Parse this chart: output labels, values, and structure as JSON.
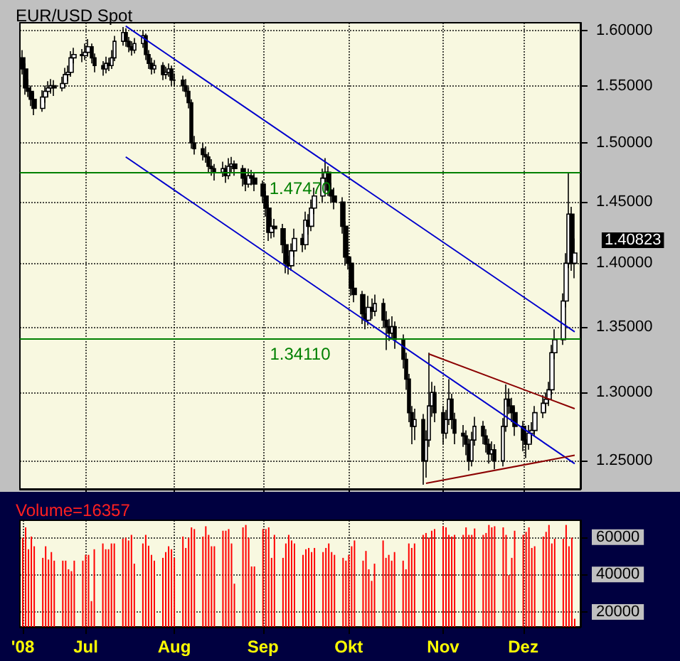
{
  "chart_data": [
    {
      "type": "candlestick",
      "title": "EUR/USD Spot",
      "color": "#000000",
      "log": "y",
      "tick_labels": "y",
      "grid": true,
      "xlim": [
        "2008-06-08",
        "2008-12-21"
      ],
      "ylim": [
        1.23,
        1.607
      ],
      "xticks": [
        {
          "value": "2008-07-01",
          "label": null
        },
        {
          "value": "2008-08-01",
          "label": null
        },
        {
          "value": "2008-09-01",
          "label": null
        },
        {
          "value": "2008-10-01",
          "label": null
        },
        {
          "value": "2008-11-03",
          "label": null
        },
        {
          "value": "2008-12-01",
          "label": null
        }
      ],
      "yticks": [
        {
          "value": 1.25,
          "label": "1.25000"
        },
        {
          "value": 1.3,
          "label": "1.30000"
        },
        {
          "value": 1.35,
          "label": "1.35000"
        },
        {
          "value": 1.4,
          "label": "1.40000"
        },
        {
          "value": 1.45,
          "label": "1.45000"
        },
        {
          "value": 1.5,
          "label": "1.50000"
        },
        {
          "value": 1.55,
          "label": "1.55000"
        },
        {
          "value": 1.6,
          "label": "1.60000"
        }
      ],
      "x": [
        "2008-06-09",
        "2008-06-10",
        "2008-06-11",
        "2008-06-12",
        "2008-06-13",
        "2008-06-16",
        "2008-06-17",
        "2008-06-18",
        "2008-06-19",
        "2008-06-20",
        "2008-06-23",
        "2008-06-24",
        "2008-06-25",
        "2008-06-26",
        "2008-06-27",
        "2008-06-30",
        "2008-07-01",
        "2008-07-02",
        "2008-07-03",
        "2008-07-04",
        "2008-07-07",
        "2008-07-08",
        "2008-07-09",
        "2008-07-10",
        "2008-07-11",
        "2008-07-14",
        "2008-07-15",
        "2008-07-16",
        "2008-07-17",
        "2008-07-18",
        "2008-07-21",
        "2008-07-22",
        "2008-07-23",
        "2008-07-24",
        "2008-07-25",
        "2008-07-28",
        "2008-07-29",
        "2008-07-30",
        "2008-07-31",
        "2008-08-01",
        "2008-08-04",
        "2008-08-05",
        "2008-08-06",
        "2008-08-07",
        "2008-08-08",
        "2008-08-11",
        "2008-08-12",
        "2008-08-13",
        "2008-08-14",
        "2008-08-15",
        "2008-08-18",
        "2008-08-19",
        "2008-08-20",
        "2008-08-21",
        "2008-08-22",
        "2008-08-25",
        "2008-08-26",
        "2008-08-27",
        "2008-08-28",
        "2008-08-29",
        "2008-09-01",
        "2008-09-02",
        "2008-09-03",
        "2008-09-04",
        "2008-09-05",
        "2008-09-08",
        "2008-09-09",
        "2008-09-10",
        "2008-09-11",
        "2008-09-12",
        "2008-09-15",
        "2008-09-16",
        "2008-09-17",
        "2008-09-18",
        "2008-09-19",
        "2008-09-22",
        "2008-09-23",
        "2008-09-24",
        "2008-09-25",
        "2008-09-26",
        "2008-09-29",
        "2008-09-30",
        "2008-10-01",
        "2008-10-02",
        "2008-10-03",
        "2008-10-06",
        "2008-10-07",
        "2008-10-08",
        "2008-10-09",
        "2008-10-10",
        "2008-10-13",
        "2008-10-14",
        "2008-10-15",
        "2008-10-16",
        "2008-10-17",
        "2008-10-20",
        "2008-10-21",
        "2008-10-22",
        "2008-10-23",
        "2008-10-24",
        "2008-10-27",
        "2008-10-28",
        "2008-10-29",
        "2008-10-30",
        "2008-10-31",
        "2008-11-03",
        "2008-11-04",
        "2008-11-05",
        "2008-11-06",
        "2008-11-07",
        "2008-11-10",
        "2008-11-11",
        "2008-11-12",
        "2008-11-13",
        "2008-11-14",
        "2008-11-17",
        "2008-11-18",
        "2008-11-19",
        "2008-11-20",
        "2008-11-21",
        "2008-11-24",
        "2008-11-25",
        "2008-11-26",
        "2008-11-27",
        "2008-11-28",
        "2008-12-01",
        "2008-12-02",
        "2008-12-03",
        "2008-12-04",
        "2008-12-05",
        "2008-12-08",
        "2008-12-09",
        "2008-12-10",
        "2008-12-11",
        "2008-12-12",
        "2008-12-15",
        "2008-12-16",
        "2008-12-17",
        "2008-12-18",
        "2008-12-19"
      ],
      "ohlc": [
        [
          1.575,
          1.582,
          1.56,
          1.565
        ],
        [
          1.565,
          1.57,
          1.542,
          1.548
        ],
        [
          1.548,
          1.556,
          1.54,
          1.545
        ],
        [
          1.545,
          1.55,
          1.532,
          1.538
        ],
        [
          1.538,
          1.544,
          1.524,
          1.53
        ],
        [
          1.53,
          1.546,
          1.527,
          1.54
        ],
        [
          1.54,
          1.55,
          1.535,
          1.545
        ],
        [
          1.545,
          1.554,
          1.54,
          1.548
        ],
        [
          1.548,
          1.556,
          1.543,
          1.55
        ],
        [
          1.55,
          1.555,
          1.541,
          1.548
        ],
        [
          1.548,
          1.558,
          1.545,
          1.552
        ],
        [
          1.552,
          1.566,
          1.549,
          1.56
        ],
        [
          1.56,
          1.568,
          1.554,
          1.562
        ],
        [
          1.562,
          1.581,
          1.558,
          1.575
        ],
        [
          1.575,
          1.584,
          1.57,
          1.578
        ],
        [
          1.578,
          1.583,
          1.571,
          1.577
        ],
        [
          1.577,
          1.588,
          1.573,
          1.58
        ],
        [
          1.58,
          1.592,
          1.576,
          1.585
        ],
        [
          1.585,
          1.588,
          1.57,
          1.575
        ],
        [
          1.575,
          1.579,
          1.562,
          1.568
        ],
        [
          1.568,
          1.572,
          1.559,
          1.565
        ],
        [
          1.565,
          1.576,
          1.561,
          1.57
        ],
        [
          1.57,
          1.575,
          1.563,
          1.568
        ],
        [
          1.568,
          1.582,
          1.565,
          1.575
        ],
        [
          1.575,
          1.595,
          1.572,
          1.59
        ],
        [
          1.59,
          1.603,
          1.586,
          1.598
        ],
        [
          1.598,
          1.602,
          1.585,
          1.59
        ],
        [
          1.59,
          1.594,
          1.58,
          1.585
        ],
        [
          1.585,
          1.59,
          1.577,
          1.582
        ],
        [
          1.582,
          1.593,
          1.579,
          1.588
        ],
        [
          1.588,
          1.6,
          1.584,
          1.595
        ],
        [
          1.595,
          1.597,
          1.573,
          1.578
        ],
        [
          1.578,
          1.582,
          1.565,
          1.57
        ],
        [
          1.57,
          1.575,
          1.56,
          1.565
        ],
        [
          1.565,
          1.573,
          1.561,
          1.568
        ],
        [
          1.568,
          1.571,
          1.555,
          1.56
        ],
        [
          1.56,
          1.567,
          1.556,
          1.562
        ],
        [
          1.562,
          1.57,
          1.558,
          1.565
        ],
        [
          1.565,
          1.568,
          1.55,
          1.555
        ],
        [
          1.555,
          1.561,
          1.549,
          1.555
        ],
        [
          1.555,
          1.559,
          1.545,
          1.55
        ],
        [
          1.55,
          1.556,
          1.54,
          1.545
        ],
        [
          1.545,
          1.549,
          1.53,
          1.535
        ],
        [
          1.535,
          1.538,
          1.495,
          1.5
        ],
        [
          1.5,
          1.506,
          1.49,
          1.495
        ],
        [
          1.495,
          1.5,
          1.485,
          1.49
        ],
        [
          1.49,
          1.497,
          1.483,
          1.488
        ],
        [
          1.488,
          1.492,
          1.474,
          1.48
        ],
        [
          1.48,
          1.486,
          1.472,
          1.478
        ],
        [
          1.478,
          1.482,
          1.468,
          1.475
        ],
        [
          1.475,
          1.484,
          1.471,
          1.478
        ],
        [
          1.478,
          1.481,
          1.466,
          1.472
        ],
        [
          1.472,
          1.487,
          1.469,
          1.48
        ],
        [
          1.48,
          1.488,
          1.475,
          1.482
        ],
        [
          1.482,
          1.485,
          1.472,
          1.478
        ],
        [
          1.478,
          1.481,
          1.463,
          1.47
        ],
        [
          1.47,
          1.474,
          1.459,
          1.465
        ],
        [
          1.465,
          1.478,
          1.462,
          1.472
        ],
        [
          1.472,
          1.477,
          1.464,
          1.47
        ],
        [
          1.47,
          1.474,
          1.459,
          1.465
        ],
        [
          1.465,
          1.468,
          1.449,
          1.455
        ],
        [
          1.455,
          1.459,
          1.438,
          1.445
        ],
        [
          1.445,
          1.448,
          1.418,
          1.425
        ],
        [
          1.425,
          1.437,
          1.42,
          1.43
        ],
        [
          1.43,
          1.436,
          1.421,
          1.428
        ],
        [
          1.428,
          1.432,
          1.408,
          1.415
        ],
        [
          1.415,
          1.419,
          1.392,
          1.4
        ],
        [
          1.4,
          1.406,
          1.391,
          1.398
        ],
        [
          1.398,
          1.416,
          1.394,
          1.41
        ],
        [
          1.41,
          1.428,
          1.405,
          1.42
        ],
        [
          1.42,
          1.424,
          1.409,
          1.415
        ],
        [
          1.415,
          1.442,
          1.411,
          1.435
        ],
        [
          1.435,
          1.44,
          1.423,
          1.43
        ],
        [
          1.43,
          1.452,
          1.426,
          1.445
        ],
        [
          1.445,
          1.462,
          1.44,
          1.455
        ],
        [
          1.455,
          1.478,
          1.45,
          1.47
        ],
        [
          1.47,
          1.487,
          1.465,
          1.475
        ],
        [
          1.475,
          1.48,
          1.455,
          1.46
        ],
        [
          1.46,
          1.466,
          1.45,
          1.455
        ],
        [
          1.455,
          1.462,
          1.444,
          1.45
        ],
        [
          1.45,
          1.454,
          1.424,
          1.43
        ],
        [
          1.43,
          1.434,
          1.398,
          1.405
        ],
        [
          1.405,
          1.412,
          1.395,
          1.4
        ],
        [
          1.4,
          1.404,
          1.374,
          1.38
        ],
        [
          1.38,
          1.386,
          1.369,
          1.375
        ],
        [
          1.375,
          1.378,
          1.352,
          1.36
        ],
        [
          1.36,
          1.366,
          1.348,
          1.355
        ],
        [
          1.355,
          1.374,
          1.351,
          1.365
        ],
        [
          1.365,
          1.372,
          1.356,
          1.362
        ],
        [
          1.362,
          1.375,
          1.358,
          1.368
        ],
        [
          1.368,
          1.372,
          1.349,
          1.355
        ],
        [
          1.355,
          1.362,
          1.332,
          1.35
        ],
        [
          1.35,
          1.356,
          1.339,
          1.345
        ],
        [
          1.345,
          1.358,
          1.341,
          1.35
        ],
        [
          1.35,
          1.354,
          1.333,
          1.34
        ],
        [
          1.34,
          1.344,
          1.318,
          1.325
        ],
        [
          1.325,
          1.33,
          1.302,
          1.31
        ],
        [
          1.31,
          1.314,
          1.278,
          1.285
        ],
        [
          1.285,
          1.29,
          1.262,
          1.275
        ],
        [
          1.275,
          1.288,
          1.265,
          1.28
        ],
        [
          1.28,
          1.284,
          1.233,
          1.25
        ],
        [
          1.25,
          1.272,
          1.238,
          1.265
        ],
        [
          1.265,
          1.33,
          1.26,
          1.29
        ],
        [
          1.29,
          1.308,
          1.282,
          1.3
        ],
        [
          1.3,
          1.305,
          1.278,
          1.285
        ],
        [
          1.285,
          1.29,
          1.262,
          1.27
        ],
        [
          1.27,
          1.287,
          1.266,
          1.28
        ],
        [
          1.28,
          1.31,
          1.276,
          1.295
        ],
        [
          1.295,
          1.299,
          1.273,
          1.28
        ],
        [
          1.28,
          1.285,
          1.262,
          1.27
        ],
        [
          1.27,
          1.276,
          1.26,
          1.268
        ],
        [
          1.268,
          1.272,
          1.254,
          1.262
        ],
        [
          1.262,
          1.266,
          1.243,
          1.25
        ],
        [
          1.25,
          1.271,
          1.246,
          1.265
        ],
        [
          1.265,
          1.282,
          1.261,
          1.275
        ],
        [
          1.275,
          1.279,
          1.262,
          1.268
        ],
        [
          1.268,
          1.273,
          1.256,
          1.262
        ],
        [
          1.262,
          1.266,
          1.248,
          1.255
        ],
        [
          1.255,
          1.264,
          1.25,
          1.258
        ],
        [
          1.258,
          1.262,
          1.244,
          1.25
        ],
        [
          1.25,
          1.281,
          1.246,
          1.275
        ],
        [
          1.275,
          1.306,
          1.271,
          1.295
        ],
        [
          1.295,
          1.303,
          1.284,
          1.29
        ],
        [
          1.29,
          1.296,
          1.278,
          1.285
        ],
        [
          1.285,
          1.289,
          1.268,
          1.275
        ],
        [
          1.275,
          1.279,
          1.257,
          1.265
        ],
        [
          1.265,
          1.27,
          1.252,
          1.262
        ],
        [
          1.262,
          1.276,
          1.258,
          1.27
        ],
        [
          1.27,
          1.278,
          1.263,
          1.272
        ],
        [
          1.272,
          1.29,
          1.268,
          1.285
        ],
        [
          1.285,
          1.298,
          1.281,
          1.292
        ],
        [
          1.292,
          1.3,
          1.286,
          1.295
        ],
        [
          1.295,
          1.308,
          1.29,
          1.302
        ],
        [
          1.302,
          1.336,
          1.298,
          1.33
        ],
        [
          1.33,
          1.348,
          1.325,
          1.34
        ],
        [
          1.34,
          1.376,
          1.336,
          1.37
        ],
        [
          1.37,
          1.408,
          1.365,
          1.4
        ],
        [
          1.4,
          1.474,
          1.396,
          1.44
        ],
        [
          1.44,
          1.446,
          1.394,
          1.4
        ],
        [
          1.4,
          1.42,
          1.388,
          1.40823
        ]
      ],
      "ref_lines": [
        {
          "axis": "y",
          "value": 1.4747,
          "label": "1.47470",
          "color": "#008000"
        },
        {
          "axis": "y",
          "value": 1.3411,
          "label": "1.34110",
          "color": "#008000"
        }
      ],
      "series": [
        {
          "type": "line",
          "color": "#0000cc",
          "x": [
            "2008-07-15",
            "2008-12-19"
          ],
          "values": [
            1.604,
            1.346
          ]
        },
        {
          "type": "line",
          "color": "#0000cc",
          "x": [
            "2008-07-15",
            "2008-12-19"
          ],
          "values": [
            1.488,
            1.248
          ]
        },
        {
          "type": "line",
          "color": "#8b0000",
          "x": [
            "2008-10-29",
            "2008-12-19"
          ],
          "values": [
            1.329,
            1.288
          ]
        },
        {
          "type": "line",
          "color": "#8b0000",
          "x": [
            "2008-10-28",
            "2008-12-19"
          ],
          "values": [
            1.234,
            1.254
          ]
        }
      ],
      "annotations": [
        {
          "text": "1.40823",
          "x": "2008-12-19",
          "y": 1.40823
        }
      ]
    },
    {
      "type": "bar",
      "title": "Volume=16357",
      "color": "#ff0000",
      "grid": true,
      "xlim": [
        "2008-06-08",
        "2008-12-21"
      ],
      "ylim": [
        12000,
        69000
      ],
      "yticks": [
        20000,
        40000,
        60000
      ],
      "xticks": [
        {
          "value": "2008-06-09",
          "label": "'08"
        },
        {
          "value": "2008-07-01",
          "label": "Jul"
        },
        {
          "value": "2008-08-01",
          "label": "Aug"
        },
        {
          "value": "2008-09-01",
          "label": "Sep"
        },
        {
          "value": "2008-10-01",
          "label": "Okt"
        },
        {
          "value": "2008-11-03",
          "label": "Nov"
        },
        {
          "value": "2008-12-01",
          "label": "Dez"
        }
      ],
      "x": [
        "2008-06-09",
        "2008-06-10",
        "2008-06-11",
        "2008-06-12",
        "2008-06-13",
        "2008-06-16",
        "2008-06-17",
        "2008-06-18",
        "2008-06-19",
        "2008-06-20",
        "2008-06-23",
        "2008-06-24",
        "2008-06-25",
        "2008-06-26",
        "2008-06-27",
        "2008-06-30",
        "2008-07-01",
        "2008-07-02",
        "2008-07-03",
        "2008-07-04",
        "2008-07-07",
        "2008-07-08",
        "2008-07-09",
        "2008-07-10",
        "2008-07-11",
        "2008-07-14",
        "2008-07-15",
        "2008-07-16",
        "2008-07-17",
        "2008-07-18",
        "2008-07-21",
        "2008-07-22",
        "2008-07-23",
        "2008-07-24",
        "2008-07-25",
        "2008-07-28",
        "2008-07-29",
        "2008-07-30",
        "2008-07-31",
        "2008-08-01",
        "2008-08-04",
        "2008-08-05",
        "2008-08-06",
        "2008-08-07",
        "2008-08-08",
        "2008-08-11",
        "2008-08-12",
        "2008-08-13",
        "2008-08-14",
        "2008-08-15",
        "2008-08-18",
        "2008-08-19",
        "2008-08-20",
        "2008-08-21",
        "2008-08-22",
        "2008-08-25",
        "2008-08-26",
        "2008-08-27",
        "2008-08-28",
        "2008-08-29",
        "2008-09-01",
        "2008-09-02",
        "2008-09-03",
        "2008-09-04",
        "2008-09-05",
        "2008-09-08",
        "2008-09-09",
        "2008-09-10",
        "2008-09-11",
        "2008-09-12",
        "2008-09-15",
        "2008-09-16",
        "2008-09-17",
        "2008-09-18",
        "2008-09-19",
        "2008-09-22",
        "2008-09-23",
        "2008-09-24",
        "2008-09-25",
        "2008-09-26",
        "2008-09-29",
        "2008-09-30",
        "2008-10-01",
        "2008-10-02",
        "2008-10-03",
        "2008-10-06",
        "2008-10-07",
        "2008-10-08",
        "2008-10-09",
        "2008-10-10",
        "2008-10-13",
        "2008-10-14",
        "2008-10-15",
        "2008-10-16",
        "2008-10-17",
        "2008-10-20",
        "2008-10-21",
        "2008-10-22",
        "2008-10-23",
        "2008-10-24",
        "2008-10-27",
        "2008-10-28",
        "2008-10-29",
        "2008-10-30",
        "2008-10-31",
        "2008-11-03",
        "2008-11-04",
        "2008-11-05",
        "2008-11-06",
        "2008-11-07",
        "2008-11-10",
        "2008-11-11",
        "2008-11-12",
        "2008-11-13",
        "2008-11-14",
        "2008-11-17",
        "2008-11-18",
        "2008-11-19",
        "2008-11-20",
        "2008-11-21",
        "2008-11-24",
        "2008-11-25",
        "2008-11-26",
        "2008-11-27",
        "2008-11-28",
        "2008-12-01",
        "2008-12-02",
        "2008-12-03",
        "2008-12-04",
        "2008-12-05",
        "2008-12-08",
        "2008-12-09",
        "2008-12-10",
        "2008-12-11",
        "2008-12-12",
        "2008-12-15",
        "2008-12-16",
        "2008-12-17",
        "2008-12-18",
        "2008-12-19"
      ],
      "values": [
        59700,
        65200,
        53500,
        60300,
        55100,
        48900,
        55100,
        48000,
        52000,
        47400,
        47400,
        47400,
        42800,
        41800,
        47400,
        47400,
        50500,
        50500,
        25800,
        53500,
        56600,
        53500,
        53500,
        56600,
        56600,
        59100,
        59700,
        58200,
        61200,
        45800,
        56600,
        61200,
        55400,
        50500,
        47400,
        48900,
        52000,
        55100,
        53500,
        48900,
        60300,
        54200,
        59700,
        65200,
        64300,
        60300,
        65800,
        61200,
        55100,
        55100,
        63400,
        63400,
        64300,
        56600,
        35100,
        65200,
        66500,
        59700,
        44300,
        44300,
        64300,
        64300,
        65200,
        48900,
        61200,
        48900,
        56600,
        61200,
        58200,
        56600,
        50500,
        53500,
        54200,
        52000,
        54200,
        52000,
        54200,
        56600,
        52000,
        50500,
        48900,
        47400,
        50500,
        55100,
        58200,
        47400,
        52600,
        42800,
        36600,
        45800,
        58200,
        48900,
        50500,
        47400,
        52000,
        47400,
        42800,
        56600,
        54200,
        56600,
        61200,
        62200,
        59700,
        63400,
        64300,
        65800,
        65200,
        61200,
        60300,
        61200,
        61200,
        65200,
        61200,
        61200,
        64600,
        61200,
        62200,
        66500,
        65200,
        65800,
        65200,
        61200,
        39700,
        48900,
        63400,
        61200,
        62800,
        65200,
        54200,
        55100,
        60300,
        62800,
        66500,
        56600,
        59100,
        59100,
        66500,
        55100,
        59700,
        16357
      ]
    }
  ]
}
